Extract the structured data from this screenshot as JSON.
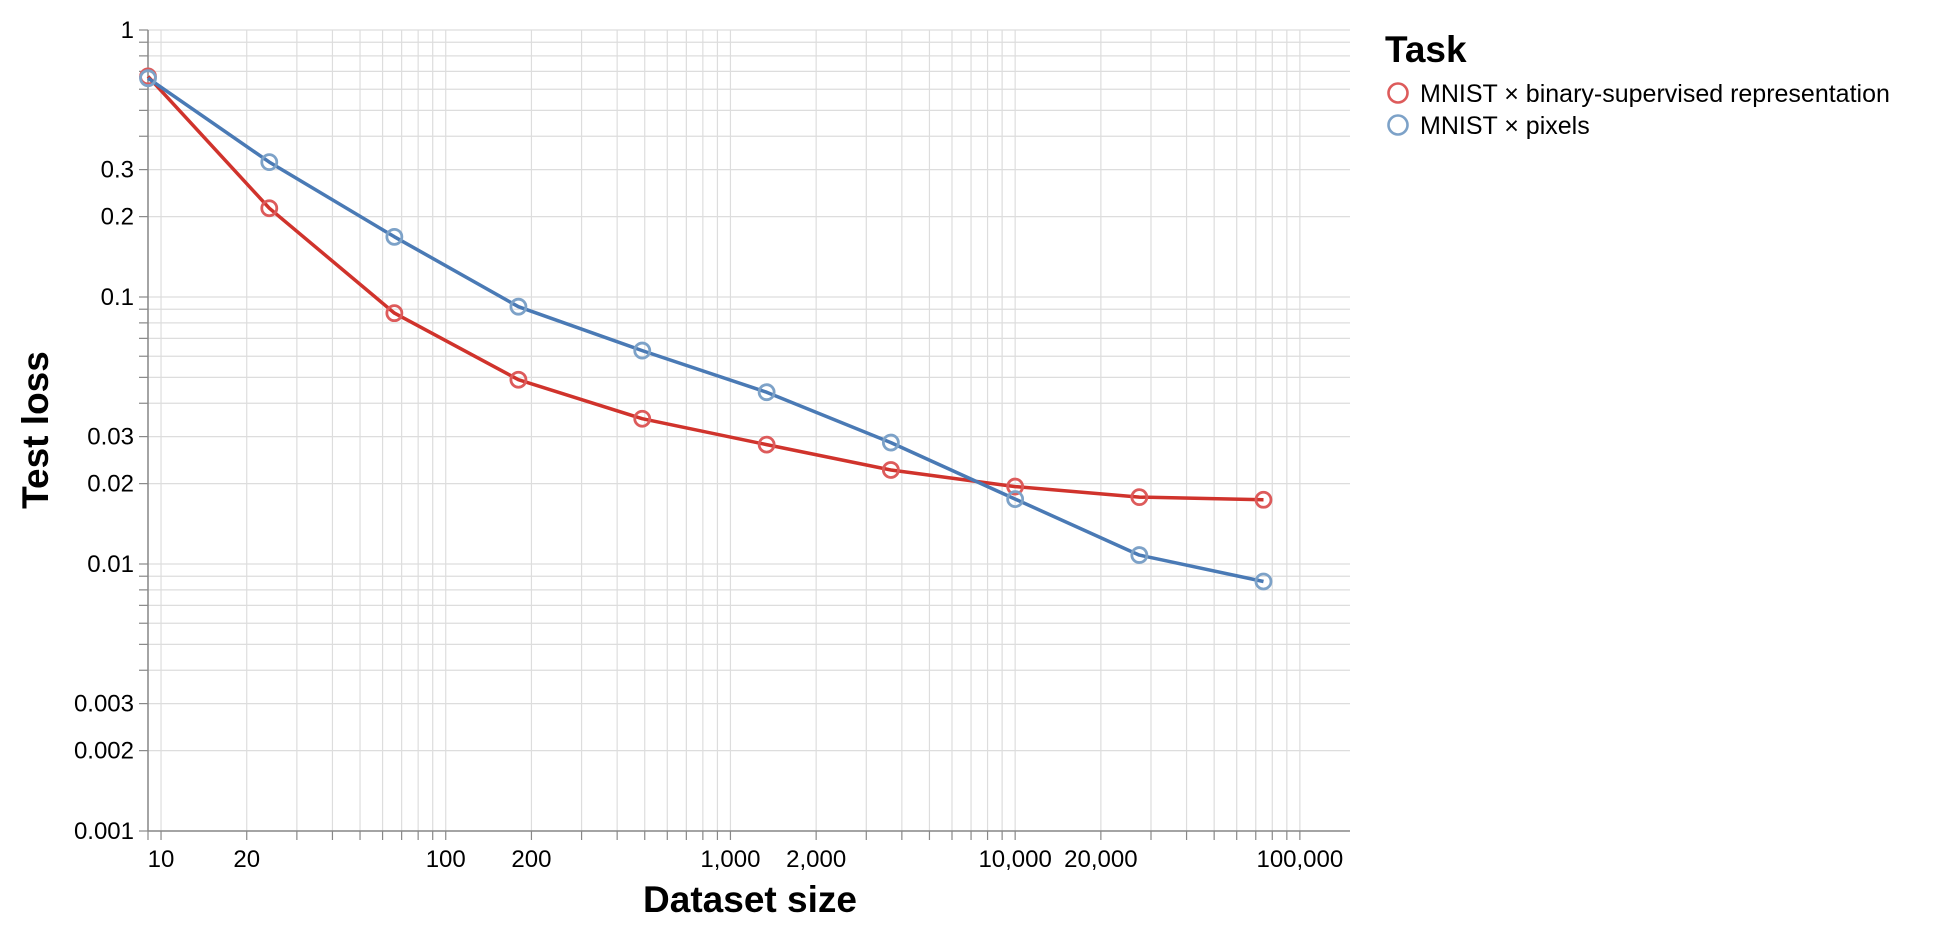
{
  "chart_data": {
    "type": "line",
    "xlabel": "Dataset size",
    "ylabel": "Test loss",
    "x_scale": "log",
    "y_scale": "log",
    "xlim": [
      9,
      150000
    ],
    "ylim": [
      0.001,
      1
    ],
    "grid": true,
    "x_tick_values": [
      10,
      20,
      100,
      200,
      1000,
      2000,
      10000,
      20000,
      100000
    ],
    "x_tick_labels": [
      "10",
      "20",
      "100",
      "200",
      "1,000",
      "2,000",
      "10,000",
      "20,000",
      "100,000"
    ],
    "y_tick_values": [
      1,
      0.3,
      0.2,
      0.1,
      0.03,
      0.02,
      0.01,
      0.003,
      0.002,
      0.001
    ],
    "y_tick_labels": [
      "1",
      "0.3",
      "0.2",
      "0.1",
      "0.03",
      "0.02",
      "0.01",
      "0.003",
      "0.002",
      "0.001"
    ],
    "legend": {
      "title": "Task",
      "position": "right"
    },
    "x": [
      9,
      24,
      66,
      180,
      490,
      1340,
      3660,
      10000,
      27300,
      74500
    ],
    "series": [
      {
        "name": "MNIST × binary-supervised representation",
        "color": "#d0332c",
        "marker_color": "#dd5b5b",
        "values": [
          0.67,
          0.215,
          0.087,
          0.049,
          0.035,
          0.028,
          0.0225,
          0.0195,
          0.0178,
          0.0174
        ]
      },
      {
        "name": "MNIST × pixels",
        "color": "#4a7ab5",
        "marker_color": "#7da2c8",
        "values": [
          0.66,
          0.32,
          0.168,
          0.092,
          0.063,
          0.044,
          0.0285,
          0.0175,
          0.0108,
          0.0086
        ]
      }
    ]
  }
}
